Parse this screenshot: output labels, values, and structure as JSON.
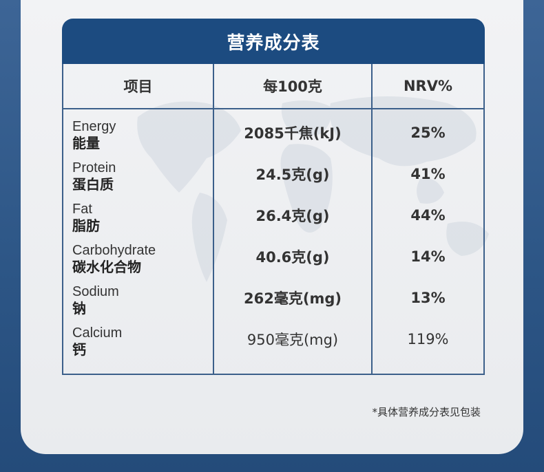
{
  "table": {
    "title": "营养成分表",
    "headers": {
      "item": "项目",
      "per100": "每100克",
      "nrv": "NRV%"
    },
    "rows": [
      {
        "en": "Energy",
        "zh": "能量",
        "amount": "2085千焦(kJ)",
        "nrv": "25%",
        "bold": true
      },
      {
        "en": "Protein",
        "zh": "蛋白质",
        "amount": "24.5克(g)",
        "nrv": "41%",
        "bold": true
      },
      {
        "en": "Fat",
        "zh": "脂肪",
        "amount": "26.4克(g)",
        "nrv": "44%",
        "bold": true
      },
      {
        "en": "Carbohydrate",
        "zh": "碳水化合物",
        "amount": "40.6克(g)",
        "nrv": "14%",
        "bold": true
      },
      {
        "en": "Sodium",
        "zh": "钠",
        "amount": "262毫克(mg)",
        "nrv": "13%",
        "bold": true
      },
      {
        "en": "Calcium",
        "zh": "钙",
        "amount": "950毫克(mg)",
        "nrv": "119%",
        "bold": false
      }
    ]
  },
  "footnote": "*具体营养成分表见包装",
  "colors": {
    "title_bar": "#1c4b80",
    "border": "#3b5f8a",
    "background": "#2c5585",
    "card": "#eef0f2"
  },
  "decor": {
    "background_graphic": "world-map"
  }
}
